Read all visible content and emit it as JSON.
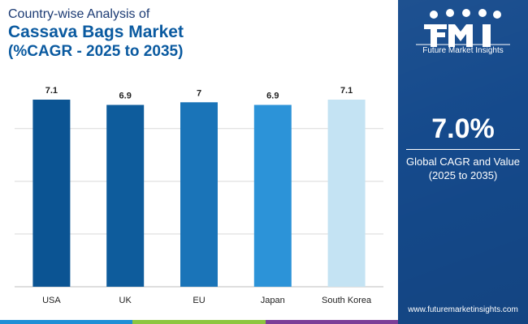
{
  "header": {
    "subtitle": "Country-wise Analysis of",
    "title": "Cassava Bags Market",
    "range": "(%CAGR - 2025 to 2035)"
  },
  "chart_data": {
    "type": "bar",
    "categories": [
      "USA",
      "UK",
      "EU",
      "Japan",
      "South Korea"
    ],
    "values": [
      7.1,
      6.9,
      7,
      6.9,
      7.1
    ],
    "value_labels": [
      "7.1",
      "6.9",
      "7",
      "6.9",
      "7.1"
    ],
    "bar_colors": [
      "#0b5493",
      "#0e5c9c",
      "#1a74b8",
      "#2c93d8",
      "#c4e3f3"
    ],
    "ylim": [
      0,
      7.5
    ],
    "grid": true,
    "title": "",
    "xlabel": "",
    "ylabel": ""
  },
  "side_panel": {
    "logo_caption": "Future Market Insights",
    "cagr_value": "7.0%",
    "cagr_label": "Global CAGR and Value (2025 to 2035)",
    "website": "www.futuremarketinsights.com"
  },
  "colors": {
    "panel_bg": "#154a8c",
    "title": "#0a5aa0",
    "footer_strip": [
      "#1f8fd6",
      "#8dc63f",
      "#7b3f98"
    ]
  }
}
